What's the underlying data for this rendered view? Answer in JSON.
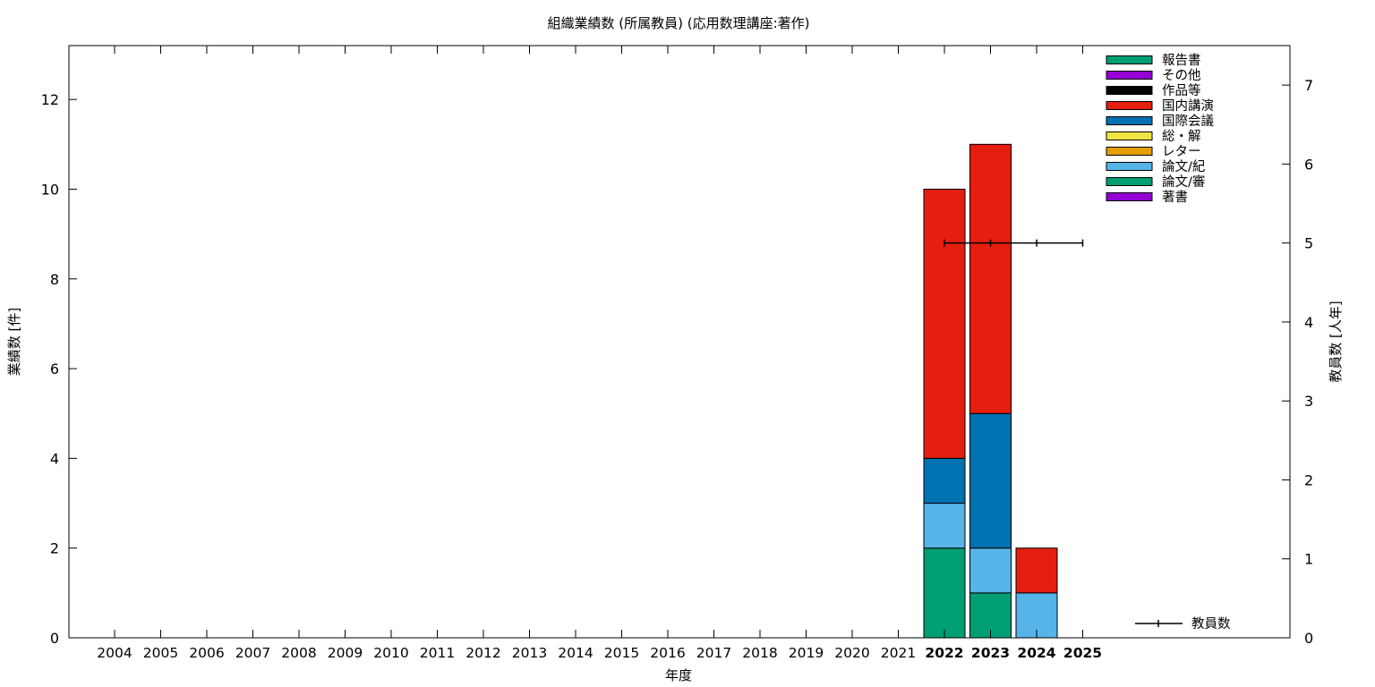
{
  "chart_data": {
    "type": "bar",
    "title": "組織業績数 (所属教員) (応用数理講座:著作)",
    "xlabel": "年度",
    "ylabel": "業績数 [件]",
    "y2label": "教員数 [人年]",
    "categories": [
      "2004",
      "2005",
      "2006",
      "2007",
      "2008",
      "2009",
      "2010",
      "2011",
      "2012",
      "2013",
      "2014",
      "2015",
      "2016",
      "2017",
      "2018",
      "2019",
      "2020",
      "2021",
      "2022",
      "2023",
      "2024",
      "2025"
    ],
    "ylim": [
      0,
      13.2
    ],
    "yticks": [
      0,
      2,
      4,
      6,
      8,
      10,
      12
    ],
    "y2lim": [
      0,
      7.5
    ],
    "y2ticks": [
      0,
      1,
      2,
      3,
      4,
      5,
      6,
      7
    ],
    "stacked": true,
    "legend_position": "top-right",
    "series": [
      {
        "name": "著書",
        "color": "#9400d3",
        "values": [
          0,
          0,
          0,
          0,
          0,
          0,
          0,
          0,
          0,
          0,
          0,
          0,
          0,
          0,
          0,
          0,
          0,
          0,
          0,
          0,
          0,
          0
        ]
      },
      {
        "name": "論文/審",
        "color": "#009e73",
        "values": [
          0,
          0,
          0,
          0,
          0,
          0,
          0,
          0,
          0,
          0,
          0,
          0,
          0,
          0,
          0,
          0,
          0,
          0,
          2,
          1,
          0,
          0
        ]
      },
      {
        "name": "論文/紀",
        "color": "#56b4e9",
        "values": [
          0,
          0,
          0,
          0,
          0,
          0,
          0,
          0,
          0,
          0,
          0,
          0,
          0,
          0,
          0,
          0,
          0,
          0,
          1,
          1,
          1,
          0
        ]
      },
      {
        "name": "レター",
        "color": "#e69f00",
        "values": [
          0,
          0,
          0,
          0,
          0,
          0,
          0,
          0,
          0,
          0,
          0,
          0,
          0,
          0,
          0,
          0,
          0,
          0,
          0,
          0,
          0,
          0
        ]
      },
      {
        "name": "総・解",
        "color": "#f0e442",
        "values": [
          0,
          0,
          0,
          0,
          0,
          0,
          0,
          0,
          0,
          0,
          0,
          0,
          0,
          0,
          0,
          0,
          0,
          0,
          0,
          0,
          0,
          0
        ]
      },
      {
        "name": "国際会議",
        "color": "#0072b2",
        "values": [
          0,
          0,
          0,
          0,
          0,
          0,
          0,
          0,
          0,
          0,
          0,
          0,
          0,
          0,
          0,
          0,
          0,
          0,
          1,
          3,
          0,
          0
        ]
      },
      {
        "name": "国内講演",
        "color": "#e51e10",
        "values": [
          0,
          0,
          0,
          0,
          0,
          0,
          0,
          0,
          0,
          0,
          0,
          0,
          0,
          0,
          0,
          0,
          0,
          0,
          6,
          6,
          1,
          0
        ]
      },
      {
        "name": "作品等",
        "color": "#000000",
        "values": [
          0,
          0,
          0,
          0,
          0,
          0,
          0,
          0,
          0,
          0,
          0,
          0,
          0,
          0,
          0,
          0,
          0,
          0,
          0,
          0,
          0,
          0
        ]
      },
      {
        "name": "その他",
        "color": "#9400d3",
        "values": [
          0,
          0,
          0,
          0,
          0,
          0,
          0,
          0,
          0,
          0,
          0,
          0,
          0,
          0,
          0,
          0,
          0,
          0,
          0,
          0,
          0,
          0
        ]
      },
      {
        "name": "報告書",
        "color": "#009e73",
        "values": [
          0,
          0,
          0,
          0,
          0,
          0,
          0,
          0,
          0,
          0,
          0,
          0,
          0,
          0,
          0,
          0,
          0,
          0,
          0,
          0,
          0,
          0
        ]
      }
    ],
    "line_series": {
      "name": "教員数",
      "axis": "y2",
      "color": "#000000",
      "x": [
        "2022",
        "2023",
        "2024",
        "2025"
      ],
      "values": [
        5,
        5,
        5,
        5
      ]
    },
    "legend_order": [
      "報告書",
      "その他",
      "作品等",
      "国内講演",
      "国際会議",
      "総・解",
      "レター",
      "論文/紀",
      "論文/審",
      "著書"
    ],
    "highlight_years": [
      "2022",
      "2023",
      "2024",
      "2025"
    ]
  }
}
